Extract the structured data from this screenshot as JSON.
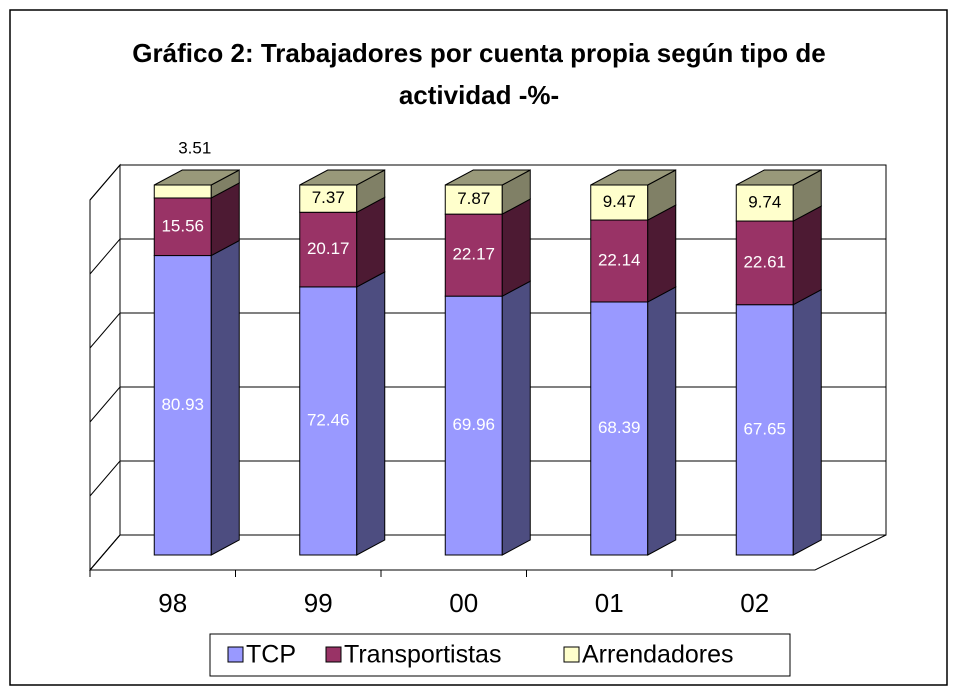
{
  "chart_data": {
    "type": "bar3d_stacked",
    "title": "Gráfico 2: Trabajadores por cuenta propia según tipo de actividad -%-",
    "categories": [
      "98",
      "99",
      "00",
      "01",
      "02"
    ],
    "series": [
      {
        "name": "TCP",
        "color": "#9999ff",
        "values": [
          80.93,
          72.46,
          69.96,
          68.39,
          67.65
        ]
      },
      {
        "name": "Transportistas",
        "color": "#993366",
        "values": [
          15.56,
          20.17,
          22.17,
          22.14,
          22.61
        ]
      },
      {
        "name": "Arrendadores",
        "color": "#ffffcc",
        "values": [
          3.51,
          7.37,
          7.87,
          9.47,
          9.74
        ]
      }
    ],
    "ylim": [
      0,
      100
    ],
    "yticks": [
      0,
      20,
      40,
      60,
      80,
      100
    ],
    "grid": true,
    "legend": "bottom"
  }
}
